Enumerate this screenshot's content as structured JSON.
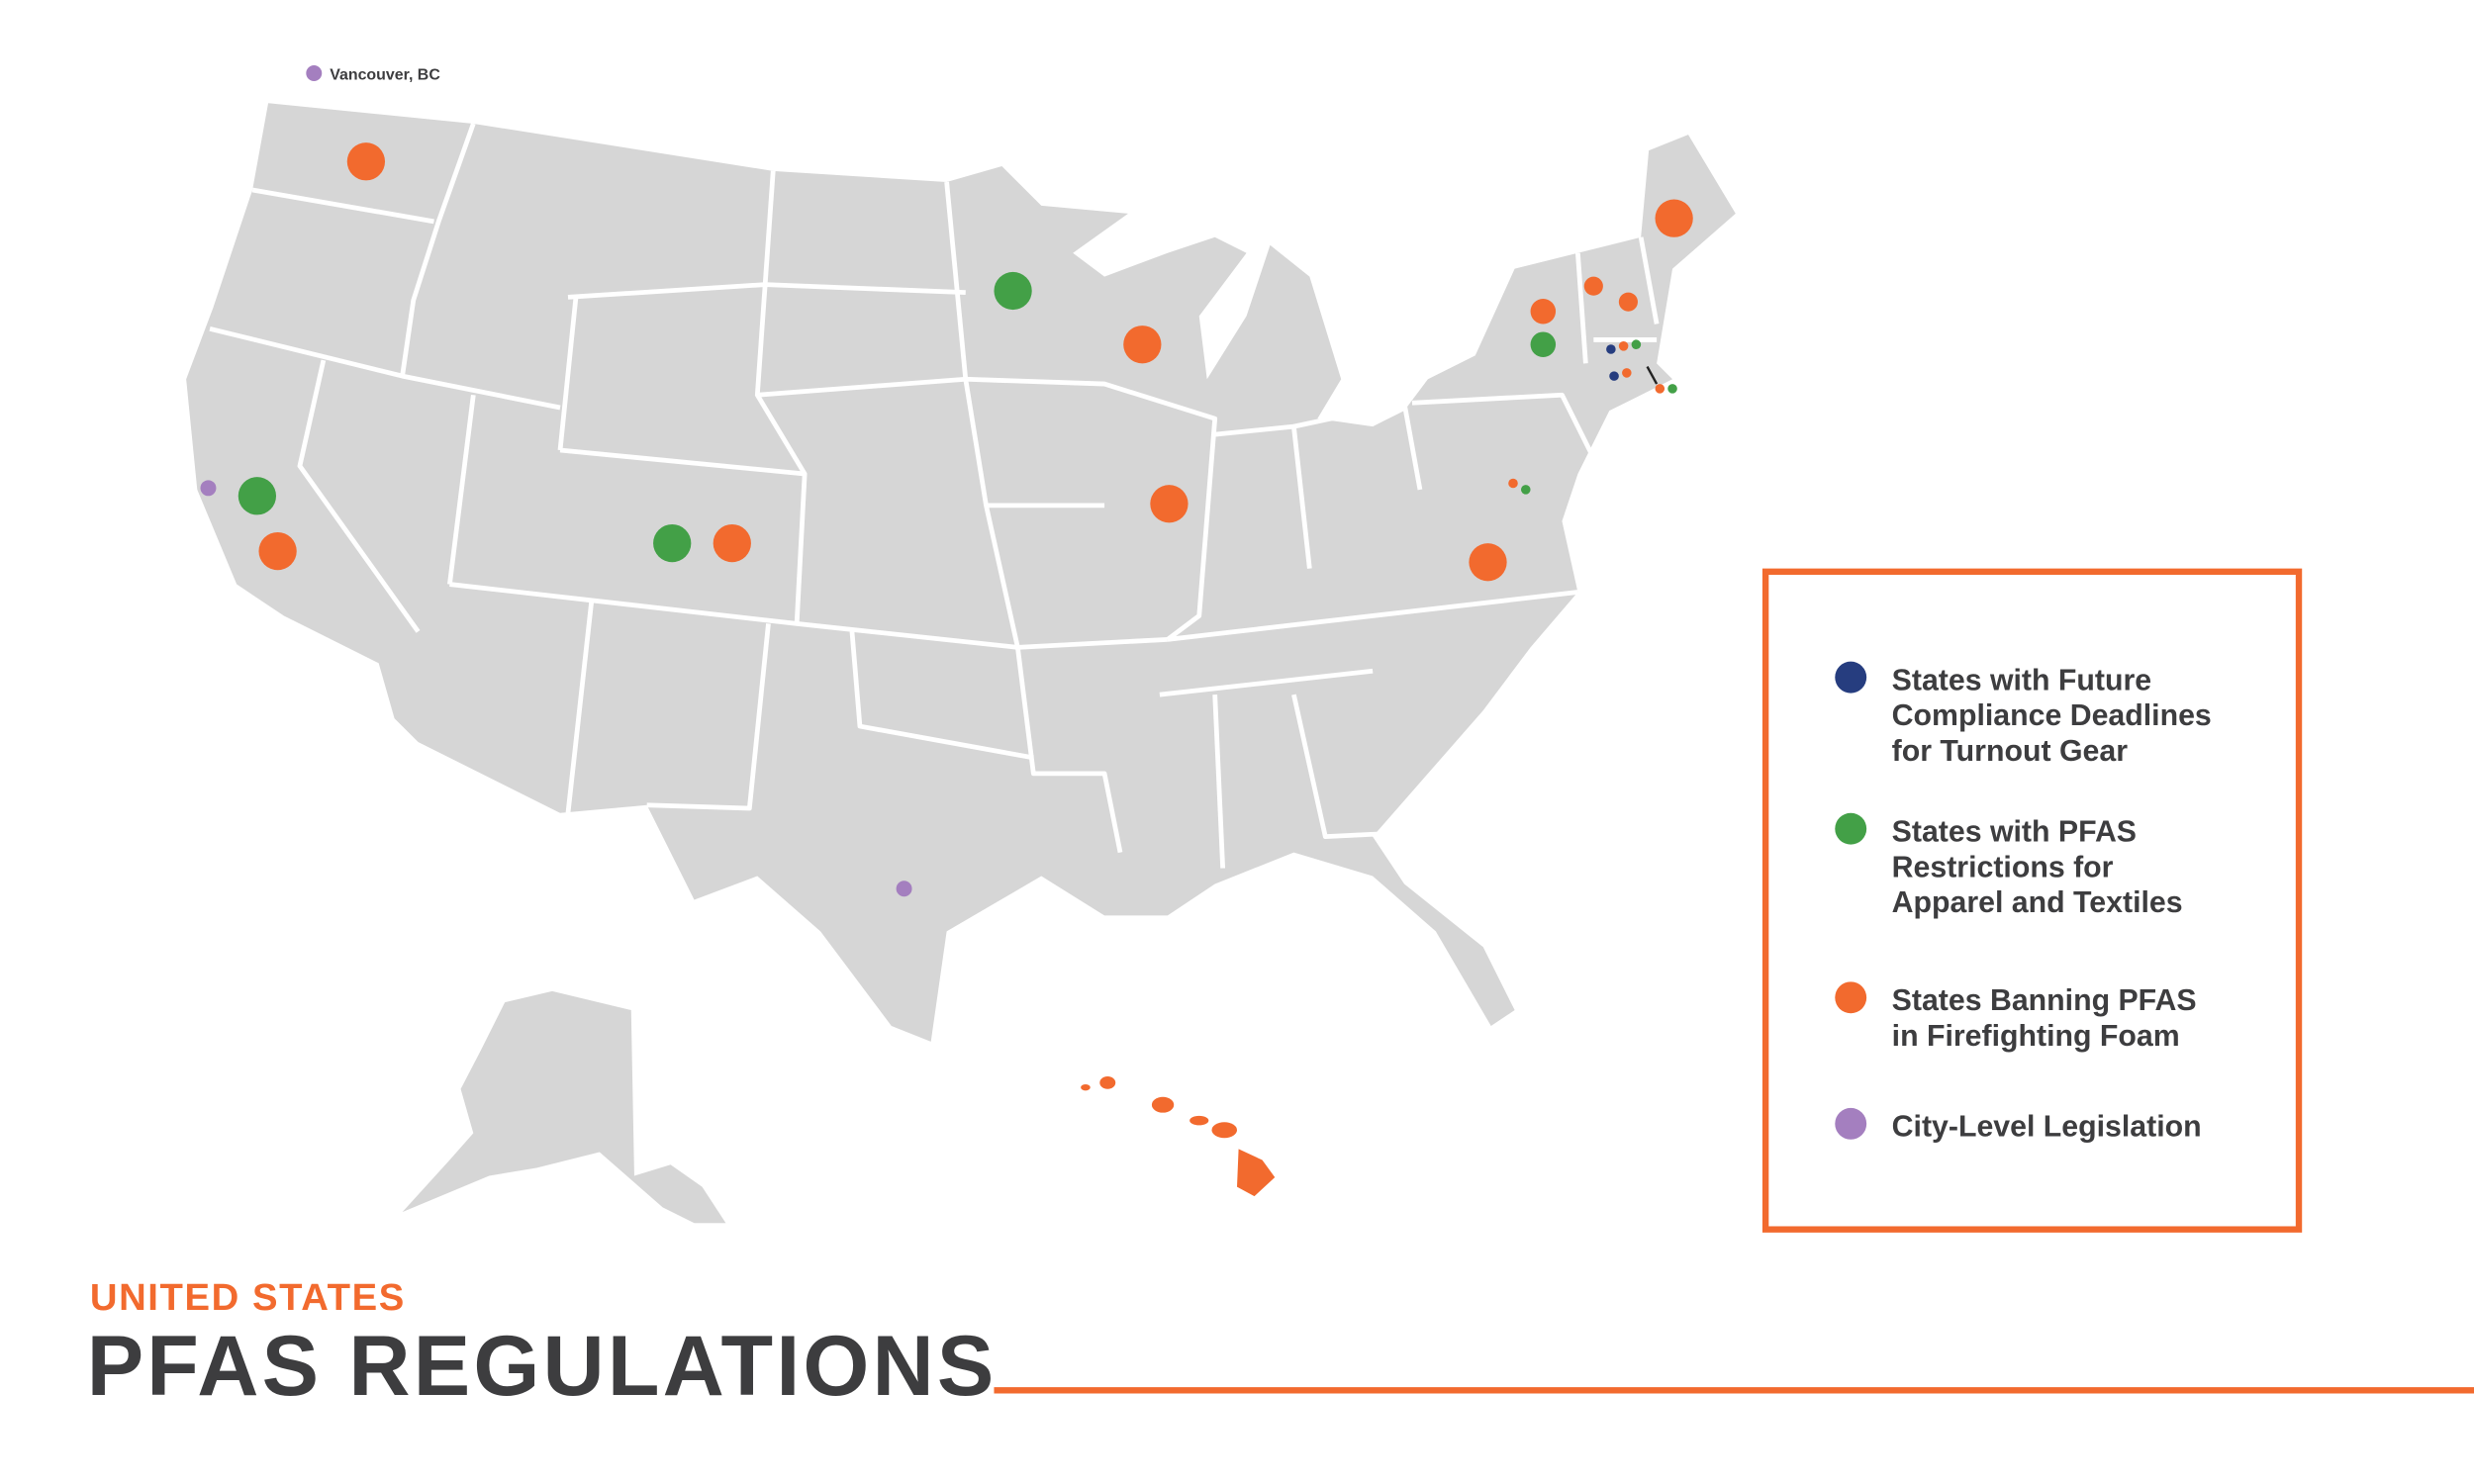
{
  "map_label": "Vancouver, BC",
  "legend": [
    {
      "color": "#263d7f",
      "lines": [
        "States with Future",
        "Compliance Deadlines",
        "for Turnout Gear"
      ]
    },
    {
      "color": "#43a047",
      "lines": [
        "States with PFAS",
        "Restrictions for",
        "Apparel and Textiles"
      ]
    },
    {
      "color": "#f26a2e",
      "lines": [
        "States Banning PFAS",
        "in Firefighting Foam"
      ]
    },
    {
      "color": "#a47fbf",
      "lines": [
        "City-Level Legislation"
      ]
    }
  ],
  "header": {
    "kicker": "UNITED STATES",
    "title": "PFAS REGULATIONS"
  }
}
